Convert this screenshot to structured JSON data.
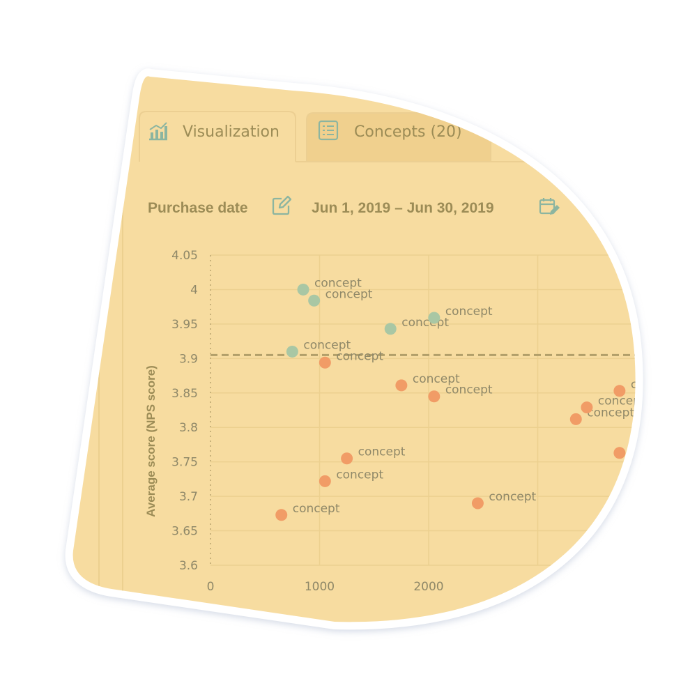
{
  "tabs": [
    {
      "label": "Visualization",
      "icon": "bar-chart-icon",
      "active": true
    },
    {
      "label": "Concepts (20)",
      "icon": "list-icon",
      "active": false
    }
  ],
  "filter": {
    "field_label": "Purchase date",
    "edit_icon": "edit-icon",
    "date_range": "Jun 1, 2019 – Jun 30, 2019",
    "calendar_icon": "calendar-edit-icon"
  },
  "colors": {
    "background": "#f7dca0",
    "above_threshold": "#a9c7a4",
    "below_threshold": "#f19c66",
    "threshold_line": "#b29f6a",
    "text": "#9c8c56"
  },
  "chart_data": {
    "type": "scatter",
    "ylabel": "Average score (NPS score)",
    "xlabel": "",
    "xlim": [
      0,
      3800
    ],
    "ylim": [
      3.6,
      4.05
    ],
    "x_ticks": [
      "0",
      "1000",
      "2000"
    ],
    "y_ticks": [
      "4.05",
      "4",
      "3.95",
      "3.9",
      "3.85",
      "3.8",
      "3.75",
      "3.7",
      "3.65",
      "3.6"
    ],
    "grid": true,
    "threshold": 3.905,
    "points": [
      {
        "x": 850,
        "y": 4.0,
        "label": "concept",
        "group": "above"
      },
      {
        "x": 950,
        "y": 3.984,
        "label": "concept",
        "group": "above"
      },
      {
        "x": 1650,
        "y": 3.943,
        "label": "concept",
        "group": "above"
      },
      {
        "x": 2050,
        "y": 3.959,
        "label": "concept",
        "group": "above"
      },
      {
        "x": 750,
        "y": 3.91,
        "label": "concept",
        "group": "above"
      },
      {
        "x": 1050,
        "y": 3.894,
        "label": "concept",
        "group": "below"
      },
      {
        "x": 1750,
        "y": 3.861,
        "label": "concept",
        "group": "below"
      },
      {
        "x": 2050,
        "y": 3.845,
        "label": "concept",
        "group": "below"
      },
      {
        "x": 1250,
        "y": 3.755,
        "label": "concept",
        "group": "below"
      },
      {
        "x": 1050,
        "y": 3.722,
        "label": "concept",
        "group": "below"
      },
      {
        "x": 650,
        "y": 3.673,
        "label": "concept",
        "group": "below"
      },
      {
        "x": 2450,
        "y": 3.69,
        "label": "concept",
        "group": "below"
      },
      {
        "x": 3350,
        "y": 3.812,
        "label": "concept",
        "group": "below"
      },
      {
        "x": 3450,
        "y": 3.829,
        "label": "concept",
        "group": "below"
      },
      {
        "x": 3750,
        "y": 3.853,
        "label": "concept",
        "group": "below"
      },
      {
        "x": 3750,
        "y": 3.763,
        "label": "concept",
        "group": "below"
      }
    ]
  }
}
